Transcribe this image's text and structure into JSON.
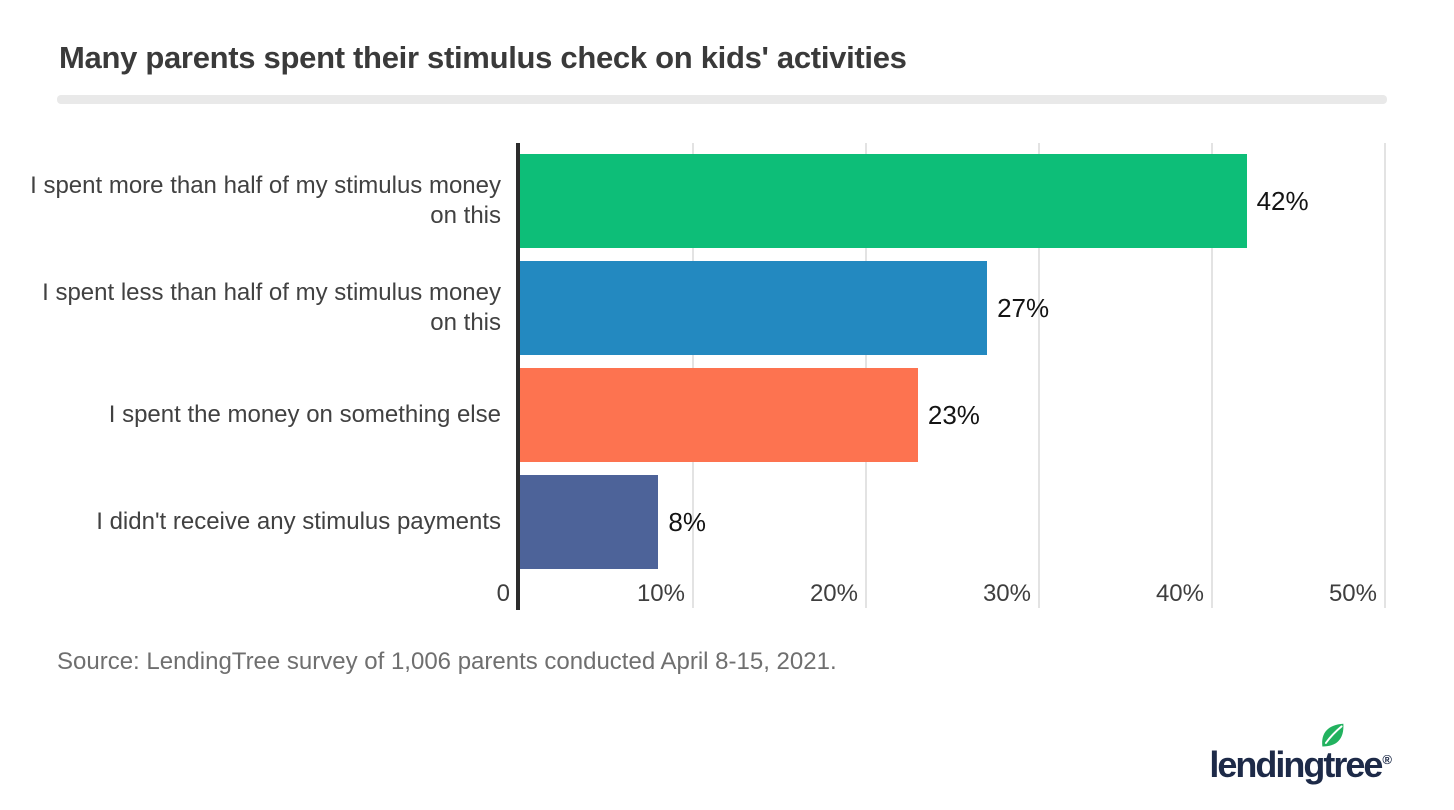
{
  "header": {
    "title": "Many parents spent their stimulus check on kids' activities"
  },
  "chart_data": {
    "type": "bar",
    "orientation": "horizontal",
    "title": "Many parents spent their stimulus check on kids' activities",
    "categories": [
      "I spent more than half of my stimulus money on this",
      "I spent less than half of my stimulus money on this",
      "I spent the money on something else",
      "I didn't receive any stimulus payments"
    ],
    "label_lines": [
      [
        "I spent more than half of my stimulus money",
        "on this"
      ],
      [
        "I spent less than half of my stimulus money",
        "on this"
      ],
      [
        "I spent the money on something else"
      ],
      [
        "I didn't receive any stimulus payments"
      ]
    ],
    "values": [
      42,
      27,
      23,
      8
    ],
    "value_labels": [
      "42%",
      "27%",
      "23%",
      "8%"
    ],
    "bar_colors": [
      "#0dbe78",
      "#2389c0",
      "#fd7350",
      "#4d6399"
    ],
    "xlim": [
      0,
      50
    ],
    "xlabel": "",
    "ylabel": "",
    "ticks": [
      {
        "value": 0,
        "label": "0"
      },
      {
        "value": 10,
        "label": "10%"
      },
      {
        "value": 20,
        "label": "20%"
      },
      {
        "value": 30,
        "label": "30%"
      },
      {
        "value": 40,
        "label": "40%"
      },
      {
        "value": 50,
        "label": "50%"
      }
    ],
    "grid": "vertical",
    "grid_color": "#e3e3e3",
    "axis_color": "#2b2b2b",
    "legend": "none"
  },
  "footer": {
    "source": "Source: LendingTree survey of 1,006 parents conducted April 8-15, 2021."
  },
  "logo": {
    "brand": "lendingtree",
    "before_t": "lending",
    "t": "t",
    "after_t": "ree",
    "registered": "®",
    "text_color": "#1d2a48",
    "leaf_color": "#22b25f"
  }
}
